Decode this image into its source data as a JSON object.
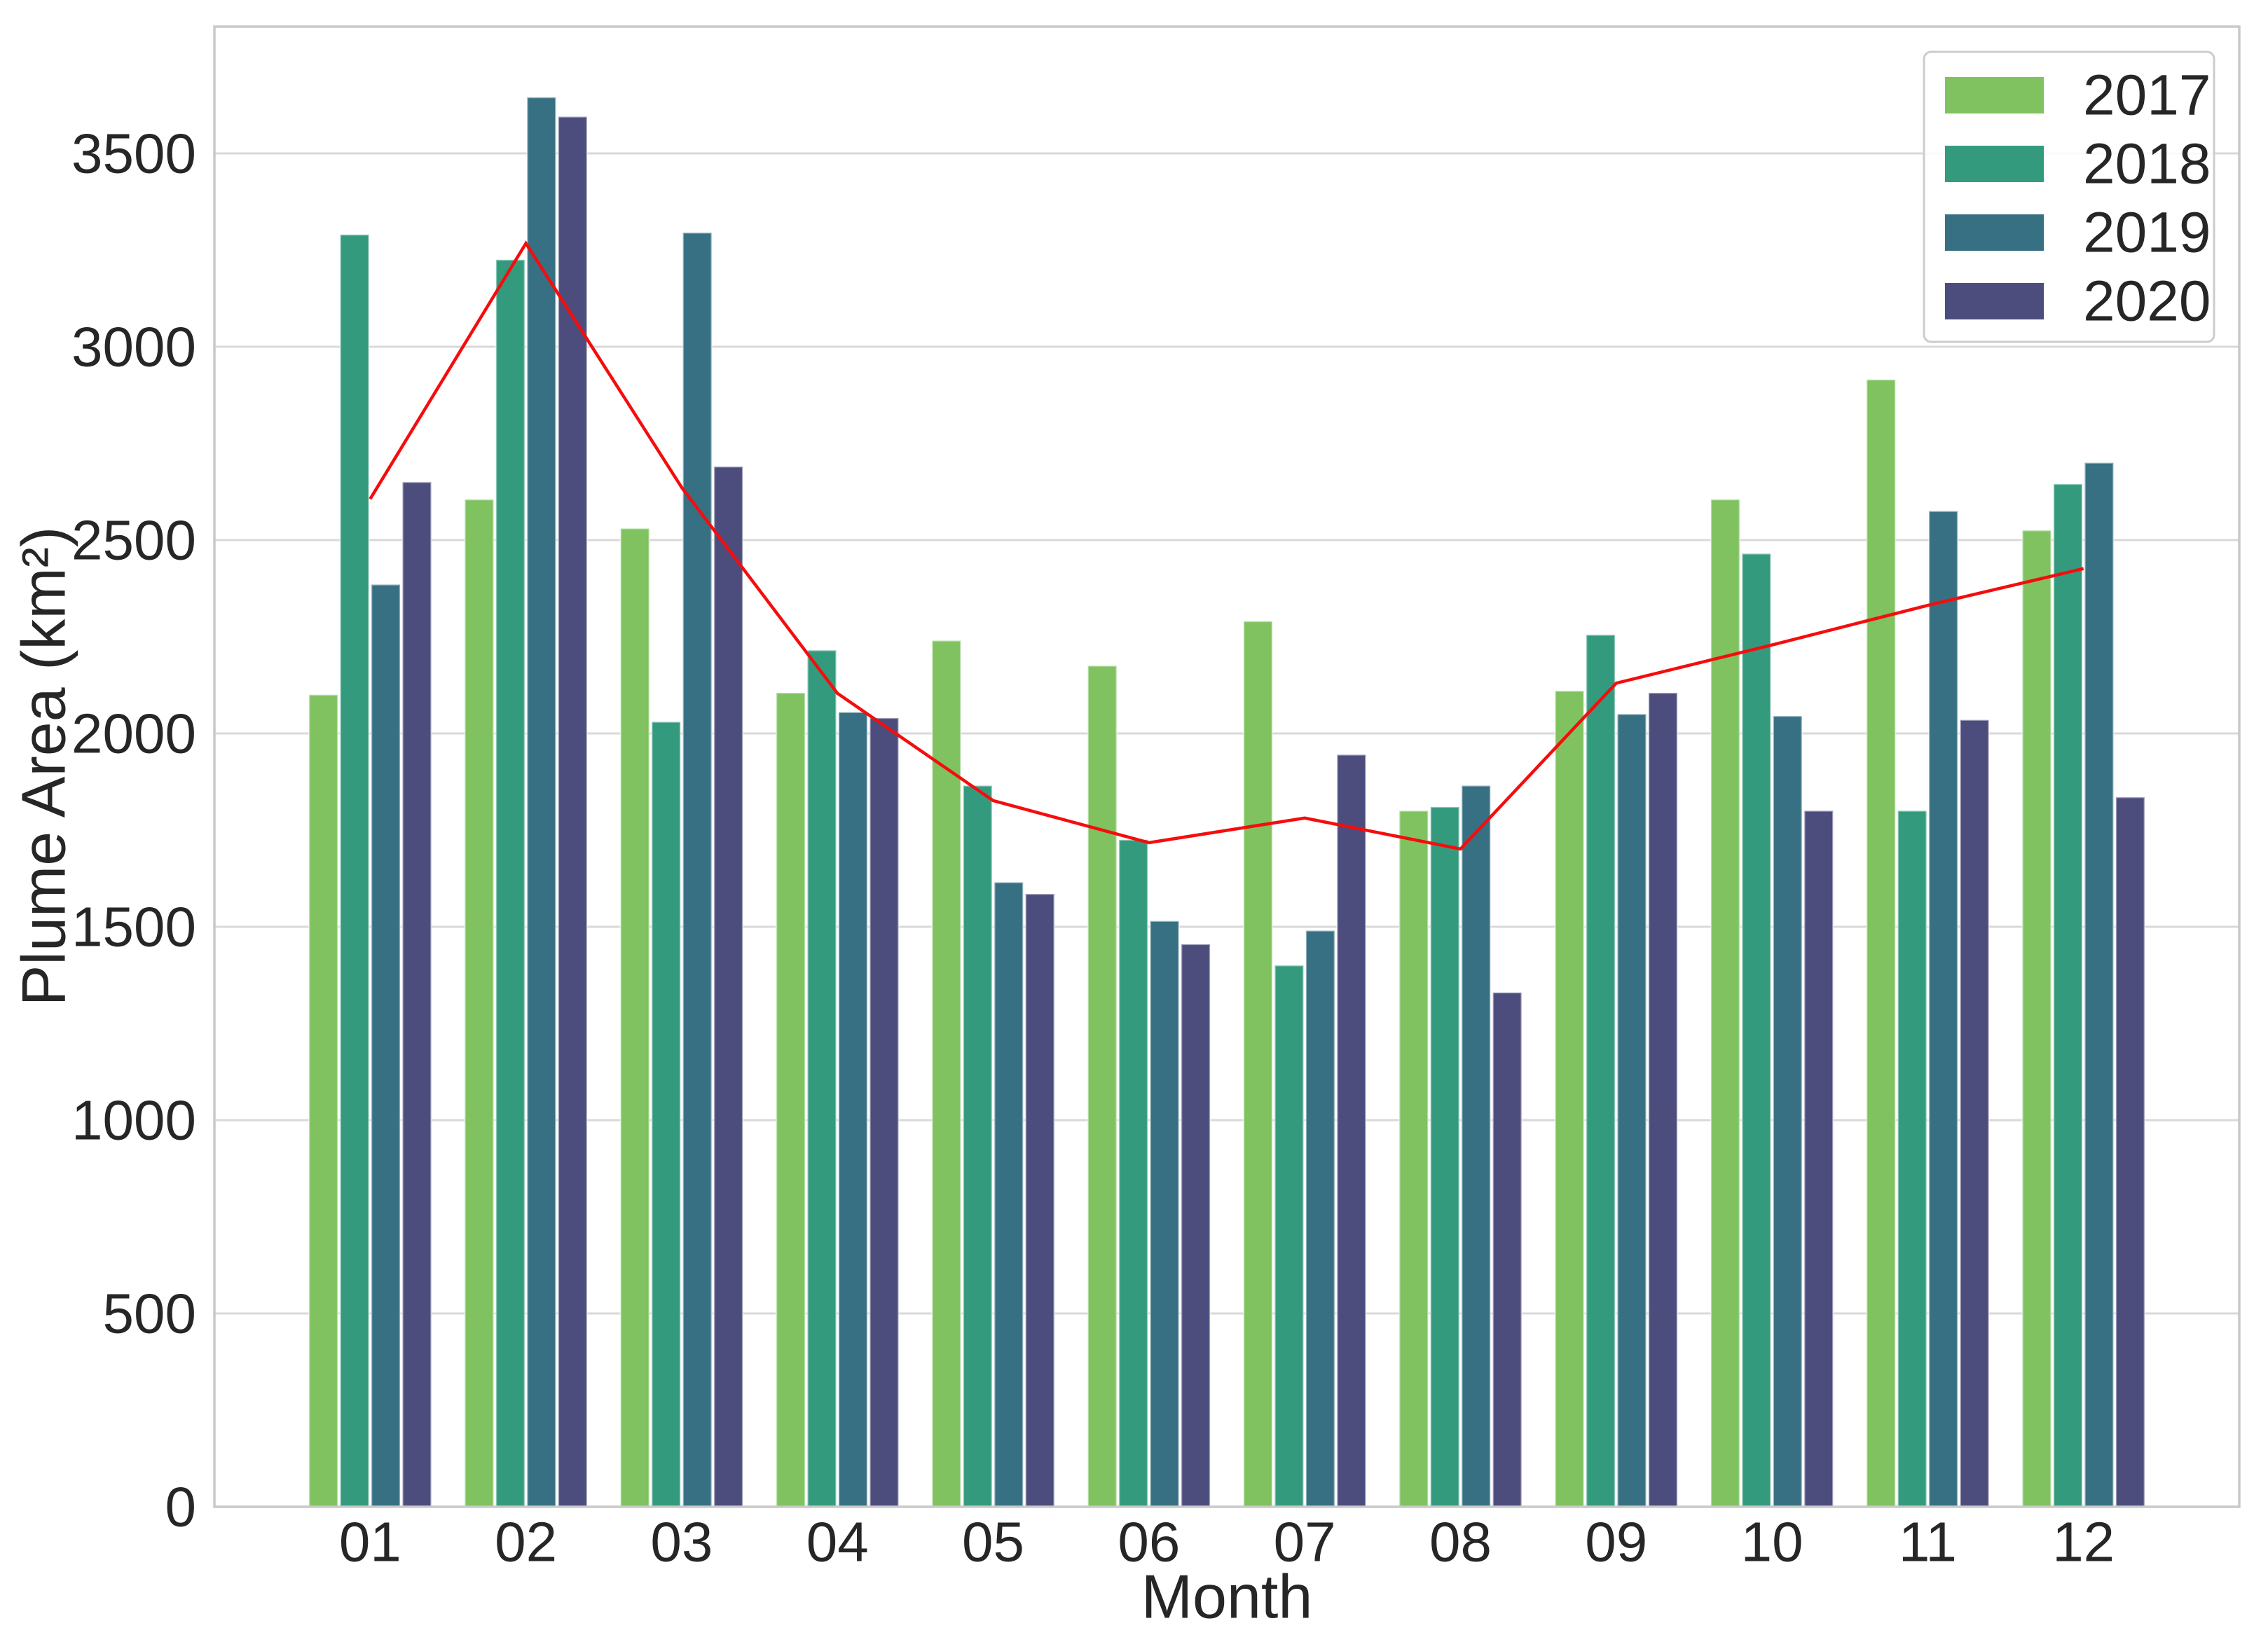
{
  "chart_data": {
    "type": "bar",
    "title": "",
    "xlabel": "Month",
    "ylabel": "Plume Area (km²)",
    "categories": [
      "01",
      "02",
      "03",
      "04",
      "05",
      "06",
      "07",
      "08",
      "09",
      "10",
      "11",
      "12"
    ],
    "series": [
      {
        "name": "2017",
        "color": "#7fc25f",
        "values": [
          2100,
          2605,
          2530,
          2105,
          2240,
          2175,
          2290,
          1800,
          2110,
          2605,
          2915,
          2525
        ]
      },
      {
        "name": "2018",
        "color": "#349a7e",
        "values": [
          3290,
          3225,
          2030,
          2215,
          1865,
          1725,
          1400,
          1810,
          2255,
          2465,
          1800,
          2645
        ]
      },
      {
        "name": "2019",
        "color": "#377083",
        "values": [
          2385,
          3645,
          3295,
          2055,
          1615,
          1515,
          1490,
          1865,
          2050,
          2045,
          2575,
          2700
        ]
      },
      {
        "name": "2020",
        "color": "#4c4d7d",
        "values": [
          2650,
          3595,
          2690,
          2040,
          1585,
          1455,
          1945,
          1330,
          2105,
          1800,
          2035,
          1835
        ]
      }
    ],
    "overlay_line": {
      "name": "monthly-mean-line",
      "color": "#f50d0d",
      "values": [
        2606.25,
        3267.5,
        2636.25,
        2103.75,
        1826.25,
        1717.5,
        1781.25,
        1701.25,
        2130.0,
        2228.75,
        2331.25,
        2426.25
      ]
    },
    "yticks": [
      0,
      500,
      1000,
      1500,
      2000,
      2500,
      3000,
      3500
    ],
    "ylim": [
      0,
      3828
    ],
    "grid": true,
    "legend": {
      "position": "upper right",
      "entries": [
        "2017",
        "2018",
        "2019",
        "2020"
      ]
    }
  },
  "style_colors": {
    "background": "#ffffff",
    "grid": "#d9d9d9",
    "spine": "#c9c9c9",
    "text": "#262626",
    "legend_border": "#cccccc",
    "bar_edge": "#ffffff"
  }
}
